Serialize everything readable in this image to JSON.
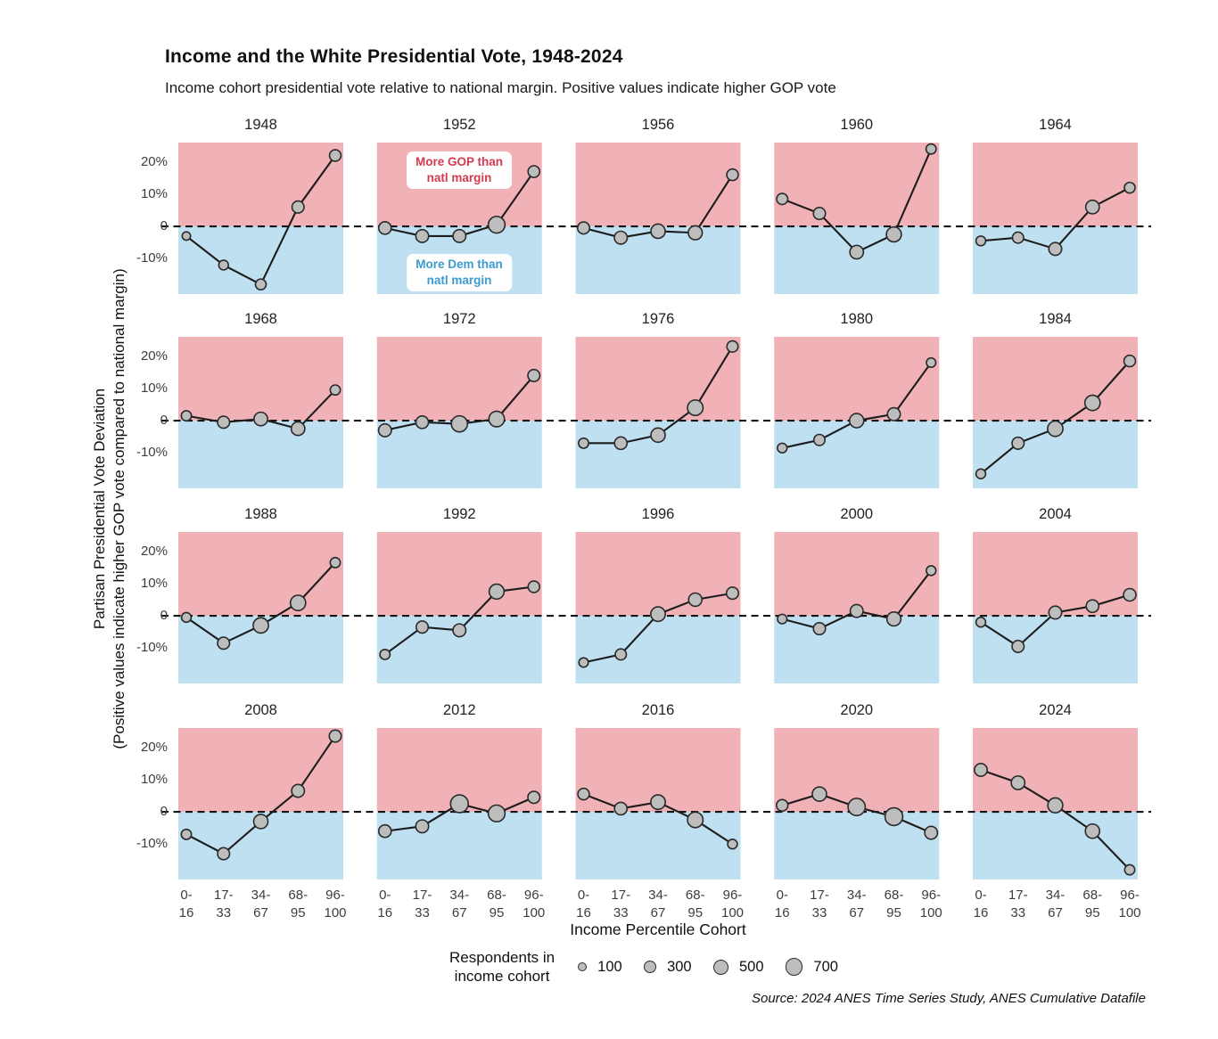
{
  "title": "Income and the White Presidential Vote, 1948-2024",
  "subtitle": "Income cohort presidential vote relative to national margin. Positive values indicate higher GOP vote",
  "y_axis": {
    "label_line1": "Partisan Presidential Vote Deviation",
    "label_line2": "(Positive values indicate higher GOP vote compared to national margin)",
    "ticks": [
      "20%",
      "10%",
      "0",
      "-10%"
    ],
    "tick_values": [
      20,
      10,
      0,
      -10
    ]
  },
  "x_axis": {
    "label": "Income Percentile Cohort",
    "tick_top": [
      "0-",
      "17-",
      "34-",
      "68-",
      "96-"
    ],
    "tick_bottom": [
      "16",
      "33",
      "67",
      "95",
      "100"
    ]
  },
  "annotations": {
    "gop_line1": "More GOP than",
    "gop_line2": "natl margin",
    "dem_line1": "More Dem than",
    "dem_line2": "natl margin"
  },
  "legend": {
    "label_line1": "Respondents in",
    "label_line2": "income cohort",
    "items": [
      {
        "label": "100",
        "n": 100
      },
      {
        "label": "300",
        "n": 300
      },
      {
        "label": "500",
        "n": 500
      },
      {
        "label": "700",
        "n": 700
      }
    ]
  },
  "source": "Source: 2024 ANES Time Series Study, ANES Cumulative Datafile",
  "colors": {
    "panel_red": "#f0b1b7",
    "panel_blue": "#bee0f0",
    "gop_text": "#d43a50",
    "dem_text": "#3b9bce",
    "point_fill": "#bdbdbd",
    "point_stroke": "#2a2a2a",
    "line": "#1c1c1c",
    "zero_line": "#141414"
  },
  "chart_data": {
    "type": "line",
    "small_multiples": true,
    "x_categories": [
      "0-16",
      "17-33",
      "34-67",
      "68-95",
      "96-100"
    ],
    "xlabel": "Income Percentile Cohort",
    "ylabel": "Partisan Presidential Vote Deviation (%)",
    "ylim": [
      -21,
      26
    ],
    "y_ticks": [
      20,
      10,
      0,
      -10
    ],
    "point_size_encodes": "respondents in income cohort",
    "size_legend": [
      100,
      300,
      500,
      700
    ],
    "regions": {
      "above_zero": "More GOP than natl margin",
      "below_zero": "More Dem than natl margin"
    },
    "panels": [
      {
        "year": "1948",
        "values": [
          -3,
          -12,
          -18,
          6,
          22
        ],
        "respondents": [
          80,
          130,
          180,
          250,
          220
        ]
      },
      {
        "year": "1952",
        "values": [
          -0.5,
          -3,
          -3,
          0.5,
          17
        ],
        "respondents": [
          280,
          300,
          300,
          600,
          230
        ]
      },
      {
        "year": "1956",
        "values": [
          -0.5,
          -3.5,
          -1.5,
          -2,
          16
        ],
        "respondents": [
          250,
          300,
          400,
          380,
          220
        ]
      },
      {
        "year": "1960",
        "values": [
          8.5,
          4,
          -8,
          -2.5,
          24
        ],
        "respondents": [
          200,
          250,
          350,
          450,
          150
        ]
      },
      {
        "year": "1964",
        "values": [
          -4.5,
          -3.5,
          -7,
          6,
          12
        ],
        "respondents": [
          130,
          200,
          300,
          350,
          180
        ]
      },
      {
        "year": "1968",
        "values": [
          1.5,
          -0.5,
          0.5,
          -2.5,
          9.5
        ],
        "respondents": [
          150,
          250,
          350,
          350,
          150
        ]
      },
      {
        "year": "1972",
        "values": [
          -3,
          -0.5,
          -1,
          0.5,
          14
        ],
        "respondents": [
          300,
          280,
          550,
          500,
          250
        ]
      },
      {
        "year": "1976",
        "values": [
          -7,
          -7,
          -4.5,
          4,
          23
        ],
        "respondents": [
          150,
          280,
          400,
          500,
          200
        ]
      },
      {
        "year": "1980",
        "values": [
          -8.5,
          -6,
          0,
          2,
          18
        ],
        "respondents": [
          130,
          200,
          400,
          300,
          120
        ]
      },
      {
        "year": "1984",
        "values": [
          -16.5,
          -7,
          -2.5,
          5.5,
          18.5
        ],
        "respondents": [
          130,
          250,
          480,
          480,
          220
        ]
      },
      {
        "year": "1988",
        "values": [
          -0.5,
          -8.5,
          -3,
          4,
          16.5
        ],
        "respondents": [
          130,
          250,
          480,
          480,
          150
        ]
      },
      {
        "year": "1992",
        "values": [
          -12,
          -3.5,
          -4.5,
          7.5,
          9
        ],
        "respondents": [
          150,
          250,
          300,
          450,
          220
        ]
      },
      {
        "year": "1996",
        "values": [
          -14.5,
          -12,
          0.5,
          5,
          7
        ],
        "respondents": [
          120,
          200,
          420,
          330,
          250
        ]
      },
      {
        "year": "2000",
        "values": [
          -1,
          -4,
          1.5,
          -1,
          14
        ],
        "respondents": [
          120,
          250,
          300,
          380,
          130
        ]
      },
      {
        "year": "2004",
        "values": [
          -2,
          -9.5,
          1,
          3,
          6.5
        ],
        "respondents": [
          130,
          250,
          300,
          280,
          280
        ]
      },
      {
        "year": "2008",
        "values": [
          -7,
          -13,
          -3,
          6.5,
          23.5
        ],
        "respondents": [
          150,
          250,
          400,
          300,
          250
        ]
      },
      {
        "year": "2012",
        "values": [
          -6,
          -4.5,
          2.5,
          -0.5,
          4.5
        ],
        "respondents": [
          280,
          300,
          700,
          600,
          250
        ]
      },
      {
        "year": "2016",
        "values": [
          5.5,
          1,
          3,
          -2.5,
          -10
        ],
        "respondents": [
          220,
          280,
          420,
          500,
          130
        ]
      },
      {
        "year": "2020",
        "values": [
          2,
          5.5,
          1.5,
          -1.5,
          -6.5
        ],
        "respondents": [
          220,
          400,
          650,
          700,
          300
        ]
      },
      {
        "year": "2024",
        "values": [
          13,
          9,
          2,
          -6,
          -18
        ],
        "respondents": [
          300,
          350,
          450,
          400,
          150
        ]
      }
    ]
  }
}
